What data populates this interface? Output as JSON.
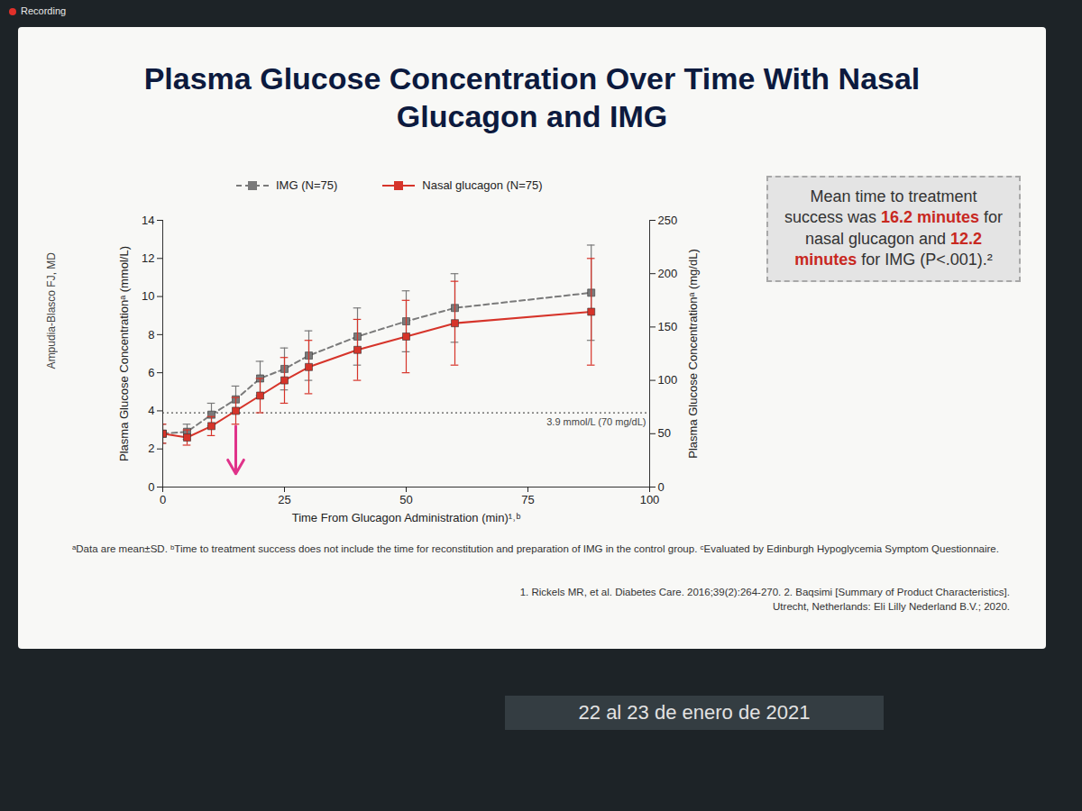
{
  "chart_data": {
    "type": "line",
    "title": "Plasma Glucose Concentration Over Time With Nasal Glucagon and IMG",
    "x_label": "Time From Glucagon Administration (min)¹˒ᵇ",
    "y_label": "Plasma Glucose Concentrationᵃ (mmol/L)",
    "y2_label": "Plasma Glucose Concentrationᵃ (mg/dL)",
    "xlim": [
      0,
      100
    ],
    "xticks": [
      0,
      25,
      50,
      75,
      100
    ],
    "ylim": [
      0,
      14
    ],
    "yticks": [
      0,
      2,
      4,
      6,
      8,
      10,
      12,
      14
    ],
    "y2lim": [
      0,
      250
    ],
    "y2ticks": [
      0,
      50,
      100,
      150,
      200,
      250
    ],
    "legend": "top",
    "marker": "square",
    "x": [
      0,
      5,
      10,
      15,
      20,
      25,
      30,
      40,
      50,
      60,
      88
    ],
    "series": [
      {
        "name": "IMG (N=75)",
        "color": "#7a7a7a",
        "line_style": "dashed",
        "values": [
          2.8,
          2.9,
          3.8,
          4.6,
          5.7,
          6.2,
          6.9,
          7.9,
          8.7,
          9.4,
          10.2
        ],
        "sd": [
          0.5,
          0.4,
          0.6,
          0.7,
          0.9,
          1.1,
          1.3,
          1.5,
          1.6,
          1.8,
          2.5
        ]
      },
      {
        "name": "Nasal glucagon (N=75)",
        "color": "#d6342a",
        "line_style": "solid",
        "values": [
          2.8,
          2.6,
          3.2,
          4.0,
          4.8,
          5.6,
          6.3,
          7.2,
          7.9,
          8.6,
          9.2
        ],
        "sd": [
          0.5,
          0.4,
          0.5,
          0.7,
          0.9,
          1.2,
          1.4,
          1.6,
          1.9,
          2.2,
          2.8
        ]
      }
    ],
    "reference_line": {
      "value": 3.9,
      "label": "3.9 mmol/L (70 mg/dL)",
      "line_style": "dotted"
    },
    "arrow": {
      "x": 15,
      "y_from": 3.2,
      "y_to": 0.7,
      "color": "#e0338a"
    },
    "annotation": {
      "text": "Mean time to treatment success was 16.2 minutes for nasal glucagon and 12.2 minutes for IMG (P<.001).²",
      "highlights": [
        "16.2 minutes",
        "12.2 minutes"
      ]
    },
    "footnote": "ᵃData are mean±SD. ᵇTime to treatment success does not include the time for reconstitution and preparation of IMG in the control group. ᶜEvaluated by Edinburgh Hypoglycemia Symptom Questionnaire.",
    "source": "1. Rickels MR, et al. Diabetes Care. 2016;39(2):264-270. 2. Baqsimi [Summary of Product Characteristics]. Utrecht, Netherlands: Eli Lilly Nederland B.V.; 2020.",
    "credit": "Ampudia-Blasco FJ, MD",
    "event_date": "22 al 23 de enero de 2021",
    "recording": "Recording"
  }
}
